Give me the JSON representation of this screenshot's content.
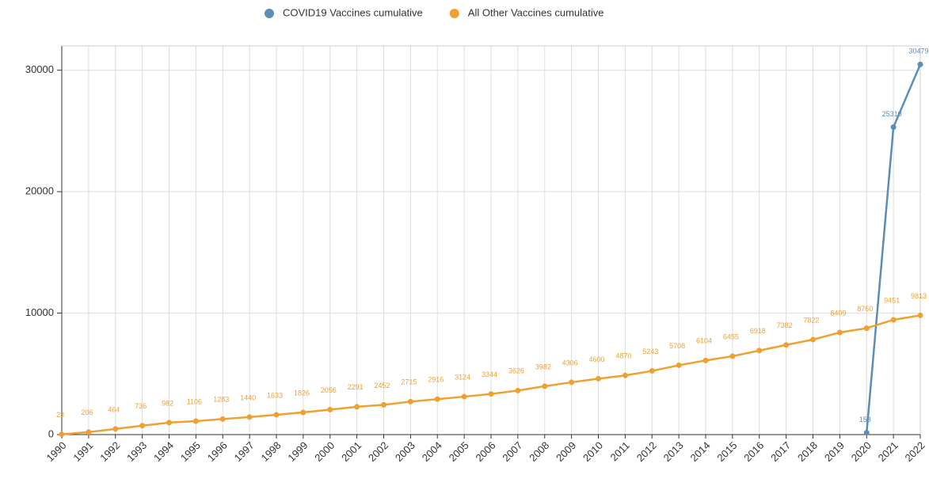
{
  "chart_data": {
    "type": "line",
    "categories": [
      "1990",
      "1991",
      "1992",
      "1993",
      "1994",
      "1995",
      "1996",
      "1997",
      "1998",
      "1999",
      "2000",
      "2001",
      "2002",
      "2003",
      "2004",
      "2005",
      "2006",
      "2007",
      "2008",
      "2009",
      "2010",
      "2011",
      "2012",
      "2013",
      "2014",
      "2015",
      "2016",
      "2017",
      "2018",
      "2019",
      "2020",
      "2021",
      "2022"
    ],
    "series": [
      {
        "name": "COVID19 Vaccines cumulative",
        "color": "#5b8db8",
        "values": [
          null,
          null,
          null,
          null,
          null,
          null,
          null,
          null,
          null,
          null,
          null,
          null,
          null,
          null,
          null,
          null,
          null,
          null,
          null,
          null,
          null,
          null,
          null,
          null,
          null,
          null,
          null,
          null,
          null,
          null,
          153,
          25310,
          30479
        ]
      },
      {
        "name": "All Other Vaccines cumulative",
        "color": "#f0a030",
        "values": [
          23,
          206,
          464,
          736,
          982,
          1106,
          1283,
          1440,
          1633,
          1826,
          2056,
          2291,
          2452,
          2715,
          2916,
          3124,
          3344,
          3626,
          3982,
          4306,
          4600,
          4870,
          5243,
          5708,
          6104,
          6455,
          6918,
          7382,
          7822,
          8409,
          8760,
          9451,
          9813
        ]
      }
    ],
    "ylim": [
      0,
      32000
    ],
    "yticks": [
      0,
      10000,
      20000,
      30000
    ],
    "grid": true,
    "data_labels": true,
    "legend": "top"
  }
}
